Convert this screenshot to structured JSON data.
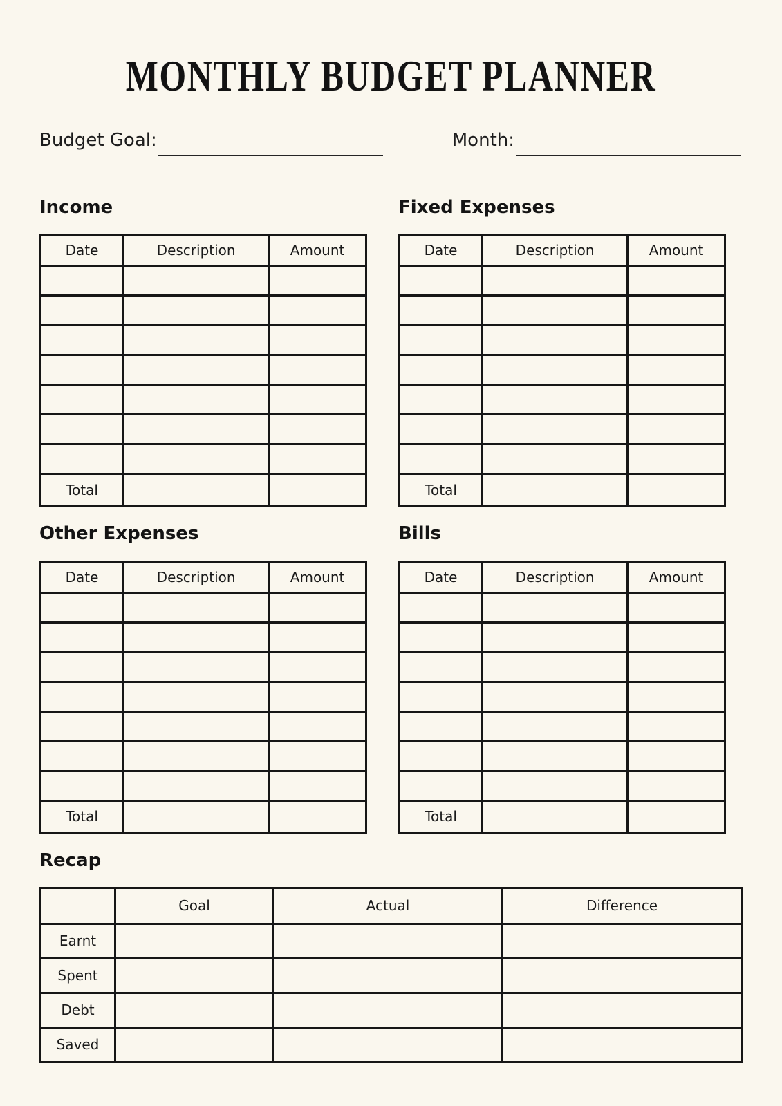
{
  "title": "MONTHLY BUDGET PLANNER",
  "fields": {
    "budget_goal_label": "Budget Goal:",
    "budget_goal_value": "",
    "month_label": "Month:",
    "month_value": ""
  },
  "sections": {
    "income": {
      "heading": "Income",
      "columns": [
        "Date",
        "Description",
        "Amount"
      ],
      "empty_rows": 7,
      "total_label": "Total"
    },
    "fixed_expenses": {
      "heading": "Fixed Expenses",
      "columns": [
        "Date",
        "Description",
        "Amount"
      ],
      "empty_rows": 7,
      "total_label": "Total"
    },
    "other_expenses": {
      "heading": "Other Expenses",
      "columns": [
        "Date",
        "Description",
        "Amount"
      ],
      "empty_rows": 7,
      "total_label": "Total"
    },
    "bills": {
      "heading": "Bills",
      "columns": [
        "Date",
        "Description",
        "Amount"
      ],
      "empty_rows": 7,
      "total_label": "Total"
    }
  },
  "recap": {
    "heading": "Recap",
    "columns": [
      "",
      "Goal",
      "Actual",
      "Difference"
    ],
    "row_labels": [
      "Earnt",
      "Spent",
      "Debt",
      "Saved"
    ]
  },
  "colors": {
    "background": "#faf7ee",
    "line_color": "#161616",
    "text_color": "#1a1a1a"
  }
}
